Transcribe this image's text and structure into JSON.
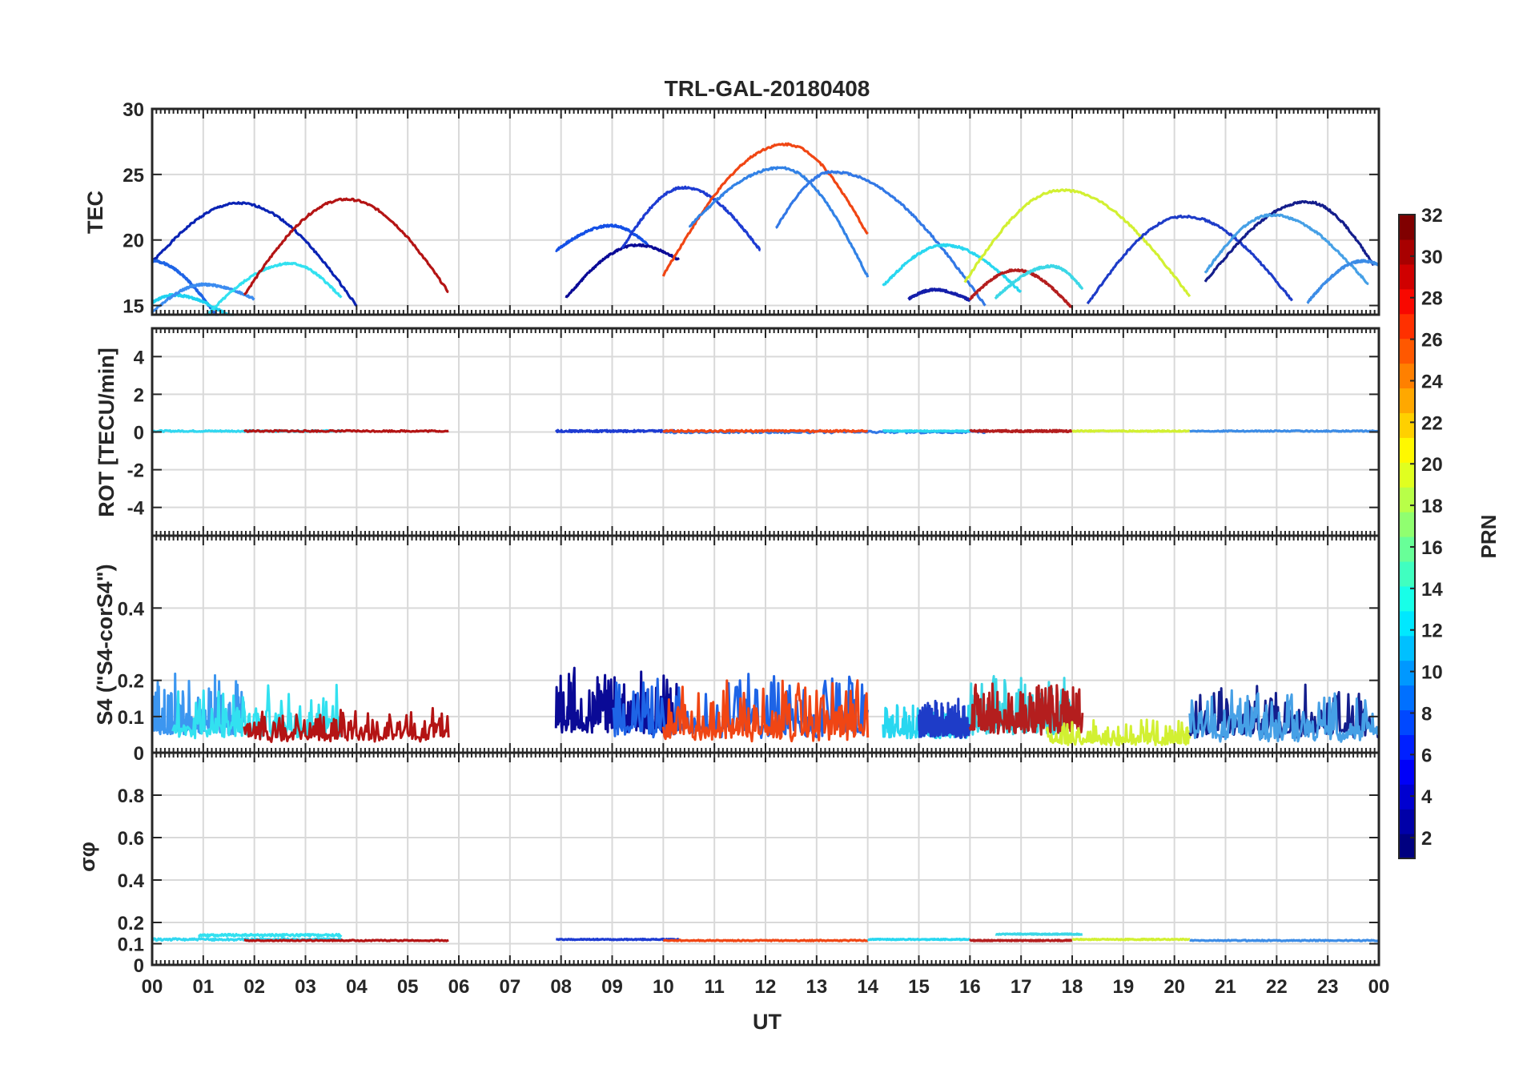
{
  "chart_data": {
    "type": "line",
    "title": "TRL-GAL-20180408",
    "xlabel": "UT",
    "x_ticks": [
      "00",
      "01",
      "02",
      "03",
      "04",
      "05",
      "06",
      "07",
      "08",
      "09",
      "10",
      "11",
      "12",
      "13",
      "14",
      "15",
      "16",
      "17",
      "18",
      "19",
      "20",
      "21",
      "22",
      "23",
      "00"
    ],
    "xlim": [
      0,
      24
    ],
    "colorbar": {
      "label": "PRN",
      "ticks": [
        2,
        4,
        6,
        8,
        10,
        12,
        14,
        16,
        18,
        20,
        22,
        24,
        26,
        28,
        30,
        32
      ],
      "clim": [
        1,
        32
      ],
      "colors": [
        "#000080",
        "#0000A8",
        "#0000D0",
        "#0000F8",
        "#0020FF",
        "#0048FF",
        "#0070FF",
        "#0098FF",
        "#00C0FF",
        "#00E8FF",
        "#18FFE8",
        "#40FFC0",
        "#68FF98",
        "#90FF70",
        "#B8FF48",
        "#E0FF20",
        "#FFF800",
        "#FFD000",
        "#FFA800",
        "#FF8000",
        "#FF5800",
        "#FF3000",
        "#F80800",
        "#D00000",
        "#A80000",
        "#800000"
      ]
    },
    "panels": [
      {
        "id": "tec",
        "ylabel": "TEC",
        "ylim": [
          14.3,
          30
        ],
        "y_ticks": [
          15,
          20,
          25,
          30
        ],
        "series": [
          {
            "prn": 4,
            "color": "#0A23B4",
            "type": "arc",
            "t0": 0.0,
            "t1": 4.0,
            "peak_t": 1.7,
            "start": 18.3,
            "peak": 22.8,
            "end": 15.0
          },
          {
            "prn": 9,
            "color": "#1E64E6",
            "type": "arc",
            "t0": 0.0,
            "t1": 1.3,
            "peak_t": 0.0,
            "start": 18.4,
            "peak": 18.4,
            "end": 14.0
          },
          {
            "prn": 12,
            "color": "#1ED2F0",
            "type": "arc",
            "t0": 0.0,
            "t1": 1.6,
            "peak_t": 0.4,
            "start": 15.2,
            "peak": 15.8,
            "end": 14.0
          },
          {
            "prn": 8,
            "color": "#3C8CF0",
            "type": "arc",
            "t0": 0.0,
            "t1": 2.0,
            "peak_t": 1.0,
            "start": 14.5,
            "peak": 16.6,
            "end": 15.5
          },
          {
            "prn": 13,
            "color": "#32E1F0",
            "type": "arc",
            "t0": 1.0,
            "t1": 3.7,
            "peak_t": 2.7,
            "start": 14.0,
            "peak": 18.2,
            "end": 15.6
          },
          {
            "prn": 30,
            "color": "#B41414",
            "type": "arc",
            "t0": 1.8,
            "t1": 5.8,
            "peak_t": 3.8,
            "start": 15.8,
            "peak": 23.1,
            "end": 16.0
          },
          {
            "prn": 7,
            "color": "#1450E6",
            "type": "arc",
            "t0": 7.9,
            "t1": 9.7,
            "peak_t": 9.0,
            "start": 19.2,
            "peak": 21.1,
            "end": 19.6
          },
          {
            "prn": 3,
            "color": "#0A0A96",
            "type": "arc",
            "t0": 8.1,
            "t1": 10.3,
            "peak_t": 9.5,
            "start": 15.6,
            "peak": 19.6,
            "end": 18.5
          },
          {
            "prn": 5,
            "color": "#1E3CD2",
            "type": "arc",
            "t0": 9.2,
            "t1": 11.9,
            "peak_t": 10.4,
            "start": 19.4,
            "peak": 24.0,
            "end": 19.2
          },
          {
            "prn": 26,
            "color": "#F04614",
            "type": "arc",
            "t0": 10.0,
            "t1": 14.0,
            "peak_t": 12.4,
            "start": 17.3,
            "peak": 27.3,
            "end": 20.4
          },
          {
            "prn": 9,
            "color": "#3282E6",
            "type": "arc",
            "t0": 10.5,
            "t1": 14.0,
            "peak_t": 12.3,
            "start": 21.0,
            "peak": 25.5,
            "end": 17.2
          },
          {
            "prn": 8,
            "color": "#3278E6",
            "type": "arc",
            "t0": 12.2,
            "t1": 16.3,
            "peak_t": 13.3,
            "start": 20.9,
            "peak": 25.2,
            "end": 15.0
          },
          {
            "prn": 12,
            "color": "#28D7F0",
            "type": "arc",
            "t0": 14.3,
            "t1": 17.0,
            "peak_t": 15.5,
            "start": 16.5,
            "peak": 19.6,
            "end": 16.0
          },
          {
            "prn": 3,
            "color": "#141EAA",
            "type": "arc",
            "t0": 14.8,
            "t1": 16.0,
            "peak_t": 15.3,
            "start": 15.5,
            "peak": 16.2,
            "end": 15.4
          },
          {
            "prn": 20,
            "color": "#D2F032",
            "type": "arc",
            "t0": 15.9,
            "t1": 20.3,
            "peak_t": 17.8,
            "start": 16.8,
            "peak": 23.8,
            "end": 15.7
          },
          {
            "prn": 30,
            "color": "#B41E1E",
            "type": "arc",
            "t0": 16.0,
            "t1": 18.0,
            "peak_t": 16.9,
            "start": 15.5,
            "peak": 17.7,
            "end": 14.8
          },
          {
            "prn": 12,
            "color": "#3CD7E6",
            "type": "arc",
            "t0": 16.5,
            "t1": 18.2,
            "peak_t": 17.6,
            "start": 15.6,
            "peak": 18.0,
            "end": 16.3
          },
          {
            "prn": 4,
            "color": "#1E3CC8",
            "type": "arc",
            "t0": 18.3,
            "t1": 22.3,
            "peak_t": 20.2,
            "start": 15.1,
            "peak": 21.8,
            "end": 15.4
          },
          {
            "prn": 2,
            "color": "#141E8C",
            "type": "arc",
            "t0": 20.6,
            "t1": 23.9,
            "peak_t": 22.6,
            "start": 16.8,
            "peak": 22.9,
            "end": 18.1
          },
          {
            "prn": 10,
            "color": "#46A0E6",
            "type": "arc",
            "t0": 20.6,
            "t1": 23.8,
            "peak_t": 21.9,
            "start": 17.5,
            "peak": 21.9,
            "end": 16.6
          },
          {
            "prn": 8,
            "color": "#3C8CE6",
            "type": "arc",
            "t0": 22.6,
            "t1": 24.0,
            "peak_t": 23.7,
            "start": 15.2,
            "peak": 18.4,
            "end": 18.1
          }
        ]
      },
      {
        "id": "rot",
        "ylabel": "ROT [TECU/min]",
        "ylim": [
          -5.5,
          5.5
        ],
        "y_ticks": [
          -4,
          -2,
          0,
          2,
          4
        ],
        "series": [
          {
            "prn": 12,
            "color": "#32D7F0",
            "type": "flat",
            "t0": 0.0,
            "t1": 3.7,
            "base": 0.05,
            "amp": 0.08
          },
          {
            "prn": 30,
            "color": "#B41414",
            "type": "flat",
            "t0": 1.8,
            "t1": 5.8,
            "base": 0.05,
            "amp": 0.08
          },
          {
            "prn": 5,
            "color": "#1E3CD2",
            "type": "flat",
            "t0": 7.9,
            "t1": 10.3,
            "base": 0.05,
            "amp": 0.1
          },
          {
            "prn": 8,
            "color": "#3278E6",
            "type": "flat",
            "t0": 10.0,
            "t1": 16.3,
            "base": 0.0,
            "amp": 0.12
          },
          {
            "prn": 26,
            "color": "#F04614",
            "type": "flat",
            "t0": 10.0,
            "t1": 14.0,
            "base": 0.05,
            "amp": 0.1
          },
          {
            "prn": 12,
            "color": "#28D7F0",
            "type": "flat",
            "t0": 14.3,
            "t1": 16.0,
            "base": 0.05,
            "amp": 0.06
          },
          {
            "prn": 30,
            "color": "#B41E1E",
            "type": "flat",
            "t0": 16.0,
            "t1": 18.0,
            "base": 0.05,
            "amp": 0.1
          },
          {
            "prn": 20,
            "color": "#D2F032",
            "type": "flat",
            "t0": 18.0,
            "t1": 20.3,
            "base": 0.05,
            "amp": 0.06
          },
          {
            "prn": 8,
            "color": "#3C8CE6",
            "type": "flat",
            "t0": 20.3,
            "t1": 24.0,
            "base": 0.05,
            "amp": 0.06
          }
        ]
      },
      {
        "id": "s4",
        "ylabel": "S4 (\"S4-corS4\")",
        "ylim": [
          0,
          0.6
        ],
        "y_ticks": [
          0,
          0.1,
          0.2,
          0.4
        ],
        "series": [
          {
            "prn": 8,
            "color": "#3C96F0",
            "type": "noise",
            "t0": 0.0,
            "t1": 1.8,
            "base": 0.05,
            "amp": 0.09,
            "seed": 3
          },
          {
            "prn": 12,
            "color": "#32E1F0",
            "type": "noise",
            "t0": 0.4,
            "t1": 3.7,
            "base": 0.04,
            "amp": 0.08,
            "seed": 7
          },
          {
            "prn": 30,
            "color": "#B41414",
            "type": "noise",
            "t0": 1.8,
            "t1": 5.8,
            "base": 0.03,
            "amp": 0.05,
            "seed": 11
          },
          {
            "prn": 3,
            "color": "#0A0A96",
            "type": "noise",
            "t0": 7.9,
            "t1": 10.3,
            "base": 0.05,
            "amp": 0.1,
            "seed": 13
          },
          {
            "prn": 9,
            "color": "#1E64E6",
            "type": "noise",
            "t0": 9.0,
            "t1": 14.0,
            "base": 0.04,
            "amp": 0.1,
            "seed": 17
          },
          {
            "prn": 26,
            "color": "#F04614",
            "type": "noise",
            "t0": 10.0,
            "t1": 14.0,
            "base": 0.03,
            "amp": 0.09,
            "seed": 19,
            "spikes": [
              [
                12.6,
                0.16
              ],
              [
                13.1,
                0.15
              ],
              [
                13.8,
                0.2
              ]
            ]
          },
          {
            "prn": 12,
            "color": "#28D7F0",
            "type": "noise",
            "t0": 14.3,
            "t1": 16.0,
            "base": 0.04,
            "amp": 0.05,
            "seed": 23
          },
          {
            "prn": 4,
            "color": "#1E3CC8",
            "type": "noise",
            "t0": 15.0,
            "t1": 16.0,
            "base": 0.04,
            "amp": 0.06,
            "seed": 29
          },
          {
            "prn": 12,
            "color": "#3CD7E6",
            "type": "noise",
            "t0": 16.0,
            "t1": 18.0,
            "base": 0.05,
            "amp": 0.09,
            "seed": 31
          },
          {
            "prn": 30,
            "color": "#B41E1E",
            "type": "noise",
            "t0": 16.0,
            "t1": 18.2,
            "base": 0.05,
            "amp": 0.08,
            "seed": 37
          },
          {
            "prn": 20,
            "color": "#D2F032",
            "type": "noise",
            "t0": 17.5,
            "t1": 20.3,
            "base": 0.02,
            "amp": 0.04,
            "seed": 41
          },
          {
            "prn": 2,
            "color": "#141E8C",
            "type": "noise",
            "t0": 20.3,
            "t1": 24.0,
            "base": 0.04,
            "amp": 0.08,
            "seed": 43
          },
          {
            "prn": 10,
            "color": "#46A0E6",
            "type": "noise",
            "t0": 20.3,
            "t1": 24.0,
            "base": 0.03,
            "amp": 0.08,
            "seed": 47
          }
        ]
      },
      {
        "id": "sigma",
        "ylabel": "σφ",
        "ylim": [
          0,
          1.0
        ],
        "y_ticks": [
          0,
          0.1,
          0.2,
          0.4,
          0.6,
          0.8
        ],
        "series": [
          {
            "prn": 12,
            "color": "#32D7F0",
            "type": "flat",
            "t0": 0.0,
            "t1": 3.7,
            "base": 0.12,
            "amp": 0.01
          },
          {
            "prn": 13,
            "color": "#32E1F0",
            "type": "flat",
            "t0": 0.9,
            "t1": 3.7,
            "base": 0.14,
            "amp": 0.01
          },
          {
            "prn": 30,
            "color": "#B41414",
            "type": "flat",
            "t0": 1.8,
            "t1": 5.8,
            "base": 0.115,
            "amp": 0.005
          },
          {
            "prn": 5,
            "color": "#1E3CD2",
            "type": "flat",
            "t0": 7.9,
            "t1": 10.3,
            "base": 0.12,
            "amp": 0.005
          },
          {
            "prn": 26,
            "color": "#F04614",
            "type": "flat",
            "t0": 10.0,
            "t1": 14.0,
            "base": 0.115,
            "amp": 0.005
          },
          {
            "prn": 12,
            "color": "#28D7F0",
            "type": "flat",
            "t0": 14.0,
            "t1": 16.0,
            "base": 0.12,
            "amp": 0.005
          },
          {
            "prn": 12,
            "color": "#3CD7E6",
            "type": "flat",
            "t0": 16.5,
            "t1": 18.2,
            "base": 0.145,
            "amp": 0.005
          },
          {
            "prn": 30,
            "color": "#B41E1E",
            "type": "flat",
            "t0": 16.0,
            "t1": 18.0,
            "base": 0.115,
            "amp": 0.005
          },
          {
            "prn": 20,
            "color": "#D2F032",
            "type": "flat",
            "t0": 18.0,
            "t1": 20.3,
            "base": 0.12,
            "amp": 0.005
          },
          {
            "prn": 8,
            "color": "#3C8CE6",
            "type": "flat",
            "t0": 20.3,
            "t1": 24.0,
            "base": 0.115,
            "amp": 0.005
          }
        ]
      }
    ]
  }
}
